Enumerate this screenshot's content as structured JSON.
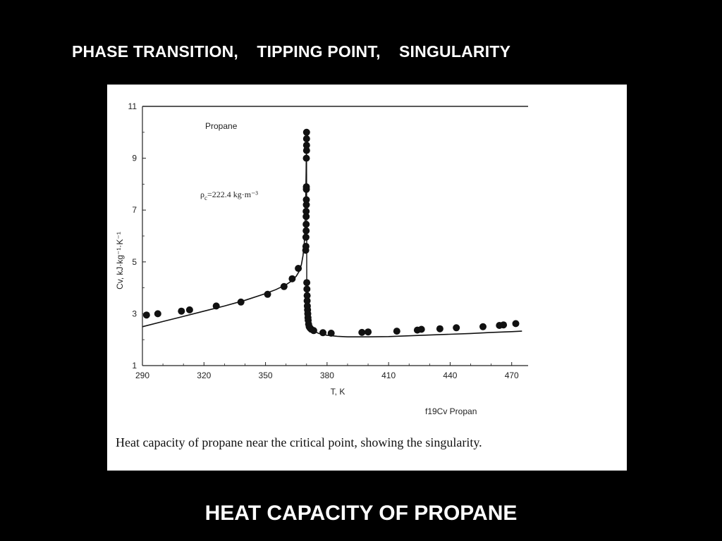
{
  "slide": {
    "top_title": "PHASE TRANSITION,    TIPPING POINT,    SINGULARITY",
    "bottom_title": "HEAT CAPACITY OF PROPANE",
    "background": "#000000",
    "text_color": "#ffffff"
  },
  "figure": {
    "caption": "Heat capacity of propane near the critical point, showing the singularity.",
    "file_tag": "f19Cv Propan"
  },
  "chart_data": {
    "type": "scatter",
    "title": "",
    "annotations": [
      "Propane",
      "ρc=222.4 kg·m⁻³"
    ],
    "xlabel": "T, K",
    "ylabel": "Cv, kJ·kg⁻¹·K⁻¹",
    "xlim": [
      290,
      478
    ],
    "ylim": [
      1,
      11
    ],
    "xticks": [
      290,
      320,
      350,
      380,
      410,
      440,
      470
    ],
    "yticks": [
      1,
      3,
      5,
      7,
      9,
      11
    ],
    "grid": false,
    "legend": "none",
    "series": [
      {
        "kind": "points",
        "x": [
          292,
          297.5,
          309,
          313,
          326,
          338,
          351,
          359,
          363,
          366,
          369.6,
          369.7,
          369.7,
          369.8,
          369.8,
          369.8,
          369.8,
          369.9,
          369.9,
          369.9,
          369.9,
          369.9,
          370,
          370,
          370,
          370,
          370.1,
          370.2,
          370.3,
          370.3,
          370.4,
          370.5,
          370.6,
          370.7,
          370.8,
          371,
          371.3,
          371.7,
          372.3,
          373.5,
          378,
          382,
          397,
          400,
          414,
          424,
          426,
          435,
          443,
          456,
          464,
          466,
          472
        ],
        "y": [
          2.95,
          3.0,
          3.1,
          3.15,
          3.3,
          3.45,
          3.75,
          4.05,
          4.35,
          4.75,
          5.45,
          5.6,
          5.95,
          6.2,
          6.45,
          6.75,
          6.95,
          7.2,
          7.4,
          7.8,
          7.9,
          9.0,
          9.3,
          9.5,
          9.75,
          10.0,
          4.2,
          3.95,
          3.7,
          3.5,
          3.3,
          3.15,
          3.0,
          2.85,
          2.75,
          2.6,
          2.5,
          2.45,
          2.4,
          2.35,
          2.27,
          2.25,
          2.28,
          2.3,
          2.33,
          2.37,
          2.4,
          2.42,
          2.46,
          2.5,
          2.55,
          2.57,
          2.62
        ]
      },
      {
        "kind": "model-curve",
        "x": [
          290,
          300,
          310,
          320,
          330,
          340,
          350,
          355,
          360,
          363,
          365,
          366.5,
          367.5,
          368.3,
          368.9,
          369.3,
          369.6,
          369.8,
          369.9,
          370,
          370.1,
          370.2,
          370.35,
          370.6,
          371,
          371.6,
          372.5,
          374,
          376,
          380,
          385,
          390,
          400,
          410,
          420,
          430,
          440,
          450,
          460,
          470,
          475
        ],
        "y": [
          2.5,
          2.7,
          2.9,
          3.1,
          3.3,
          3.52,
          3.78,
          3.93,
          4.12,
          4.28,
          4.45,
          4.65,
          4.9,
          5.25,
          5.75,
          6.4,
          7.4,
          8.5,
          9.3,
          10.0,
          4.3,
          3.8,
          3.35,
          3.0,
          2.75,
          2.55,
          2.42,
          2.32,
          2.24,
          2.17,
          2.13,
          2.11,
          2.11,
          2.12,
          2.15,
          2.18,
          2.21,
          2.24,
          2.28,
          2.31,
          2.33
        ]
      }
    ]
  }
}
